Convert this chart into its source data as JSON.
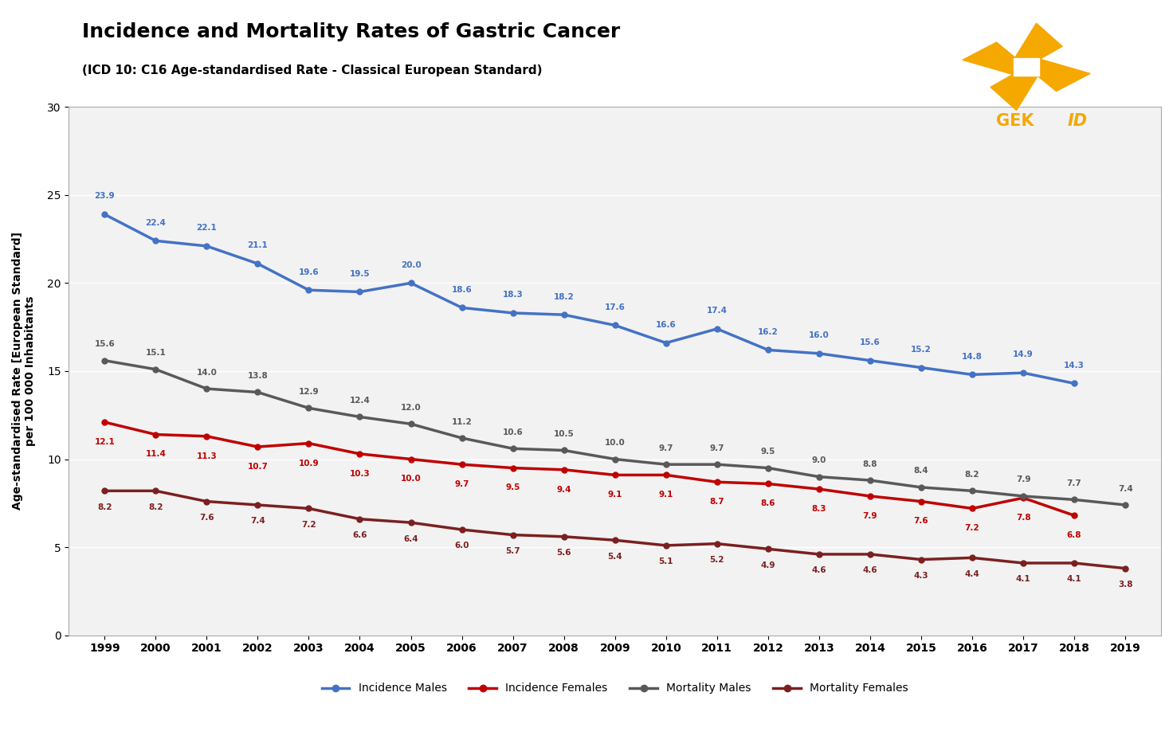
{
  "title": "Incidence and Mortality Rates of Gastric Cancer",
  "subtitle": "(ICD 10: C16 Age-standardised Rate - Classical European Standard)",
  "ylabel": "Age-standardised Rate [European Standard]\nper 100 000 Inhabitants",
  "years": [
    1999,
    2000,
    2001,
    2002,
    2003,
    2004,
    2005,
    2006,
    2007,
    2008,
    2009,
    2010,
    2011,
    2012,
    2013,
    2014,
    2015,
    2016,
    2017,
    2018,
    2019
  ],
  "incidence_males": [
    23.9,
    22.4,
    22.1,
    21.1,
    19.6,
    19.5,
    20.0,
    18.6,
    18.3,
    18.2,
    17.6,
    16.6,
    17.4,
    16.2,
    16.0,
    15.6,
    15.2,
    14.8,
    14.9,
    14.3,
    null
  ],
  "incidence_females": [
    12.1,
    11.4,
    11.3,
    10.7,
    10.9,
    10.3,
    10.0,
    9.7,
    9.5,
    9.4,
    9.1,
    9.1,
    8.7,
    8.6,
    8.3,
    7.9,
    7.6,
    7.2,
    7.8,
    6.8,
    null
  ],
  "mortality_males": [
    15.6,
    15.1,
    14.0,
    13.8,
    12.9,
    12.4,
    12.0,
    11.2,
    10.6,
    10.5,
    10.0,
    9.7,
    9.7,
    9.5,
    9.0,
    8.8,
    8.4,
    8.2,
    7.9,
    7.7,
    7.4
  ],
  "mortality_females": [
    8.2,
    8.2,
    7.6,
    7.4,
    7.2,
    6.6,
    6.4,
    6.0,
    5.7,
    5.6,
    5.4,
    5.1,
    5.2,
    4.9,
    4.6,
    4.6,
    4.3,
    4.4,
    4.1,
    4.1,
    3.8
  ],
  "color_incidence_males": "#4472C4",
  "color_incidence_females": "#C00000",
  "color_mortality_males": "#595959",
  "color_mortality_females": "#7B2020",
  "ylim": [
    0,
    30
  ],
  "yticks": [
    0,
    5,
    10,
    15,
    20,
    25,
    30
  ],
  "bg_plot": "#F2F2F2",
  "bg_fig": "#FFFFFF",
  "gekid_color": "#F5A800"
}
